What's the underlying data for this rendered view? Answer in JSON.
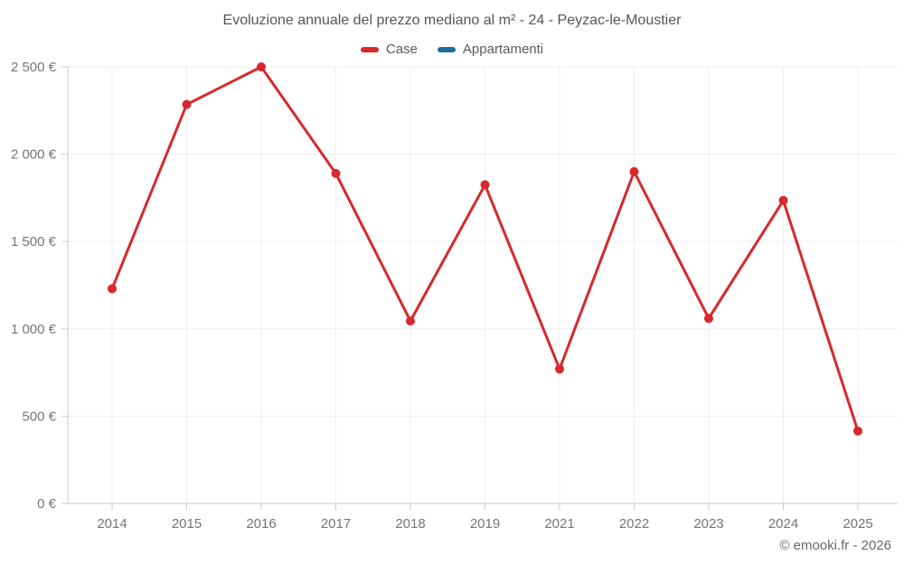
{
  "title": "Evoluzione annuale del prezzo mediano al m² - 24 - Peyzac-le-Moustier",
  "legend": {
    "items": [
      {
        "label": "Case",
        "color": "#d7282d"
      },
      {
        "label": "Appartamenti",
        "color": "#1a6f9d"
      }
    ]
  },
  "footer": "© emooki.fr - 2026",
  "chart_data": {
    "type": "line",
    "title": "Evoluzione annuale del prezzo mediano al m² - 24 - Peyzac-le-Moustier",
    "xlabel": "",
    "ylabel": "",
    "categories": [
      "2014",
      "2015",
      "2016",
      "2017",
      "2018",
      "2019",
      "2021",
      "2022",
      "2023",
      "2024",
      "2025"
    ],
    "series": [
      {
        "name": "Case",
        "color": "#d7282d",
        "values": [
          1230,
          2285,
          2500,
          1890,
          1045,
          1825,
          770,
          1900,
          1060,
          1735,
          415
        ]
      },
      {
        "name": "Appartamenti",
        "color": "#1a6f9d",
        "values": []
      }
    ],
    "ylim": [
      0,
      2500
    ],
    "y_tick_values": [
      0,
      500,
      1000,
      1500,
      2000,
      2500
    ],
    "y_tick_labels": [
      "0 €",
      "500 €",
      "1 000 €",
      "1 500 €",
      "2 000 €",
      "2 500 €"
    ],
    "grid": true,
    "legend_position": "top"
  }
}
